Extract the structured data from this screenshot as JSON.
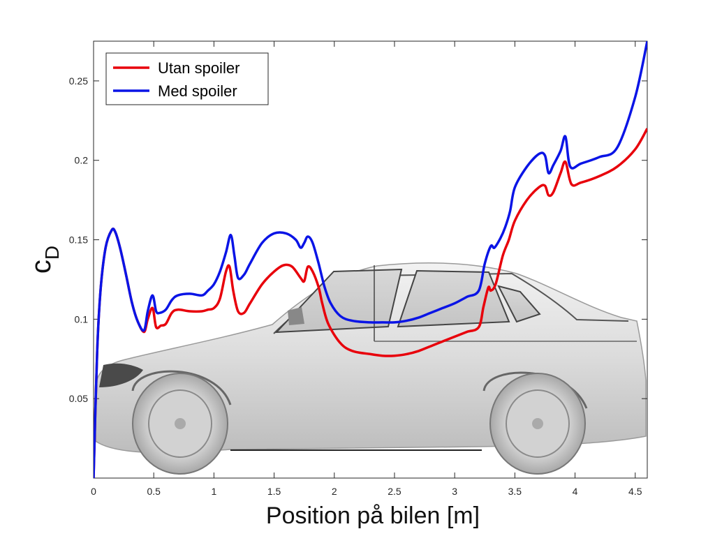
{
  "chart_data": {
    "type": "line",
    "title": "",
    "xlabel": "Position på bilen [m]",
    "ylabel_main": "c",
    "ylabel_sub": "D",
    "xlim": [
      0,
      4.6
    ],
    "ylim": [
      0,
      0.275
    ],
    "xticks": [
      0,
      0.5,
      1,
      1.5,
      2,
      2.5,
      3,
      3.5,
      4,
      4.5
    ],
    "xtick_labels": [
      "0",
      "0.5",
      "1",
      "1.5",
      "2",
      "2.5",
      "3",
      "3.5",
      "4",
      "4.5"
    ],
    "yticks": [
      0.05,
      0.1,
      0.15,
      0.2,
      0.25
    ],
    "ytick_labels": [
      "0.05",
      "0.1",
      "0.15",
      "0.2",
      "0.25"
    ],
    "grid": false,
    "legend_position": "top-left",
    "background_image": "car-side-silhouette",
    "series": [
      {
        "name": "Utan spoiler",
        "color": "#e8000b",
        "x": [
          0,
          0.03,
          0.06,
          0.1,
          0.15,
          0.18,
          0.22,
          0.27,
          0.32,
          0.37,
          0.42,
          0.45,
          0.49,
          0.52,
          0.56,
          0.6,
          0.65,
          0.7,
          0.8,
          0.9,
          0.95,
          1.0,
          1.05,
          1.1,
          1.13,
          1.16,
          1.2,
          1.25,
          1.3,
          1.4,
          1.5,
          1.58,
          1.65,
          1.72,
          1.75,
          1.78,
          1.82,
          1.87,
          1.9,
          1.95,
          2.05,
          2.15,
          2.3,
          2.4,
          2.5,
          2.6,
          2.7,
          2.8,
          2.9,
          3.0,
          3.1,
          3.2,
          3.24,
          3.28,
          3.3,
          3.34,
          3.4,
          3.45,
          3.5,
          3.6,
          3.7,
          3.75,
          3.78,
          3.82,
          3.88,
          3.92,
          3.97,
          4.05,
          4.2,
          4.35,
          4.5,
          4.6
        ],
        "y": [
          0.0,
          0.08,
          0.12,
          0.145,
          0.156,
          0.155,
          0.145,
          0.128,
          0.11,
          0.098,
          0.092,
          0.1,
          0.107,
          0.095,
          0.096,
          0.097,
          0.104,
          0.106,
          0.105,
          0.105,
          0.106,
          0.107,
          0.113,
          0.13,
          0.133,
          0.118,
          0.105,
          0.104,
          0.11,
          0.122,
          0.13,
          0.134,
          0.133,
          0.126,
          0.124,
          0.133,
          0.13,
          0.12,
          0.11,
          0.097,
          0.085,
          0.08,
          0.078,
          0.077,
          0.077,
          0.078,
          0.08,
          0.083,
          0.086,
          0.089,
          0.092,
          0.095,
          0.108,
          0.12,
          0.118,
          0.122,
          0.14,
          0.15,
          0.162,
          0.175,
          0.183,
          0.184,
          0.178,
          0.18,
          0.192,
          0.199,
          0.185,
          0.186,
          0.19,
          0.196,
          0.207,
          0.22
        ]
      },
      {
        "name": "Med spoiler",
        "color": "#0a14e6",
        "x": [
          0,
          0.03,
          0.06,
          0.1,
          0.15,
          0.18,
          0.22,
          0.27,
          0.32,
          0.37,
          0.42,
          0.45,
          0.49,
          0.52,
          0.55,
          0.6,
          0.65,
          0.7,
          0.8,
          0.9,
          0.95,
          1.0,
          1.05,
          1.1,
          1.14,
          1.17,
          1.2,
          1.25,
          1.3,
          1.4,
          1.5,
          1.6,
          1.68,
          1.72,
          1.75,
          1.78,
          1.82,
          1.87,
          1.92,
          1.97,
          2.05,
          2.15,
          2.3,
          2.4,
          2.5,
          2.6,
          2.7,
          2.8,
          2.9,
          3.0,
          3.1,
          3.2,
          3.25,
          3.3,
          3.33,
          3.38,
          3.42,
          3.46,
          3.5,
          3.6,
          3.7,
          3.75,
          3.78,
          3.82,
          3.88,
          3.92,
          3.96,
          4.05,
          4.2,
          4.35,
          4.5,
          4.6
        ],
        "y": [
          0.0,
          0.08,
          0.12,
          0.145,
          0.156,
          0.155,
          0.145,
          0.128,
          0.11,
          0.098,
          0.093,
          0.105,
          0.115,
          0.105,
          0.104,
          0.106,
          0.112,
          0.115,
          0.116,
          0.115,
          0.118,
          0.122,
          0.13,
          0.142,
          0.153,
          0.14,
          0.126,
          0.128,
          0.135,
          0.148,
          0.154,
          0.154,
          0.15,
          0.145,
          0.148,
          0.152,
          0.148,
          0.135,
          0.12,
          0.11,
          0.102,
          0.099,
          0.098,
          0.098,
          0.098,
          0.099,
          0.101,
          0.104,
          0.107,
          0.11,
          0.114,
          0.118,
          0.135,
          0.146,
          0.145,
          0.151,
          0.158,
          0.168,
          0.183,
          0.196,
          0.204,
          0.203,
          0.192,
          0.197,
          0.206,
          0.215,
          0.196,
          0.198,
          0.202,
          0.208,
          0.24,
          0.275
        ]
      }
    ]
  }
}
